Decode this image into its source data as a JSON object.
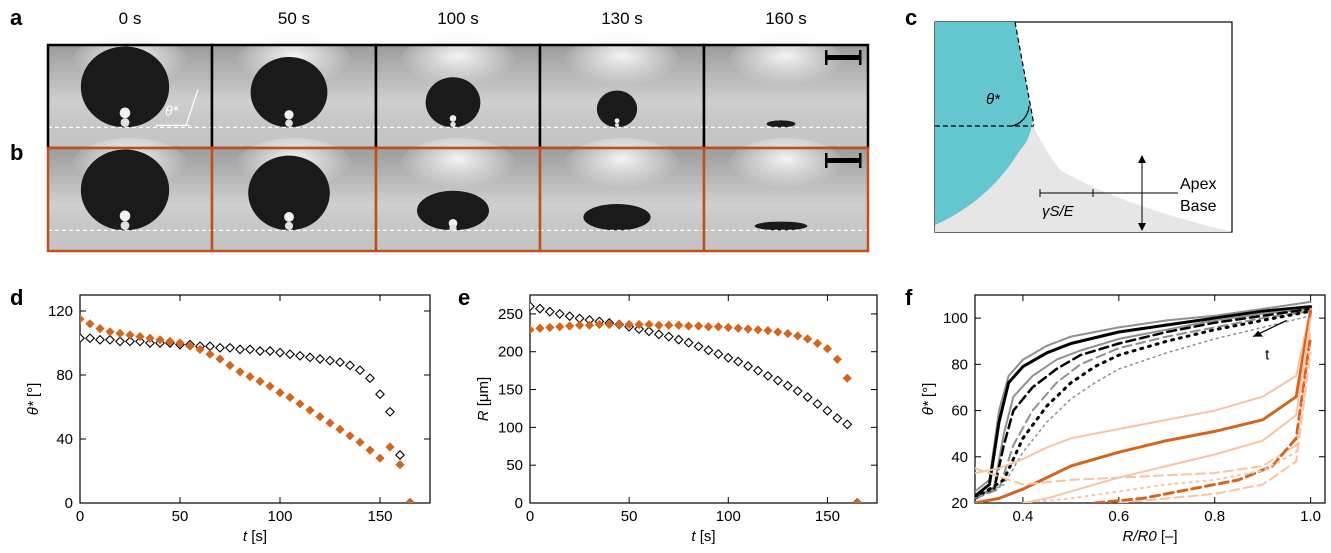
{
  "panels": {
    "a": "a",
    "b": "b",
    "c": "c",
    "d": "d",
    "e": "e",
    "f": "f"
  },
  "frames": {
    "times": [
      "0 s",
      "50 s",
      "100 s",
      "130 s",
      "160 s"
    ],
    "angle_label": "θ*",
    "row_a_border": "#000000",
    "row_b_border": "#c0501b",
    "drop_radius_a": [
      0.92,
      0.8,
      0.57,
      0.42,
      0.3
    ],
    "drop_height_a": [
      0.92,
      0.8,
      0.57,
      0.42,
      0.08
    ],
    "drop_radius_b": [
      0.92,
      0.85,
      0.75,
      0.7,
      0.55
    ],
    "drop_height_b": [
      0.92,
      0.85,
      0.45,
      0.3,
      0.1
    ]
  },
  "schematic": {
    "angle_label": "θ*",
    "length_label": "γS/E",
    "apex": "Apex",
    "base": "Base",
    "drop_color": "#64c6cf",
    "substrate_color": "#e6e6e6"
  },
  "colors": {
    "orange": "#d4651e",
    "black": "#000000"
  },
  "chart_data": [
    {
      "id": "d",
      "type": "scatter",
      "xlabel_var": "t",
      "xlabel_unit": "[s]",
      "ylabel_var": "θ*",
      "ylabel_unit": "[°]",
      "xlim": [
        0,
        175
      ],
      "ylim": [
        0,
        130
      ],
      "xticks": [
        0,
        50,
        100,
        150
      ],
      "yticks": [
        0,
        40,
        80,
        120
      ],
      "series": [
        {
          "marker": "open-diamond",
          "color": "#000000",
          "x": [
            0,
            5,
            10,
            15,
            20,
            25,
            30,
            35,
            40,
            45,
            50,
            55,
            60,
            65,
            70,
            75,
            80,
            85,
            90,
            95,
            100,
            105,
            110,
            115,
            120,
            125,
            130,
            135,
            140,
            145,
            150,
            155,
            160,
            165
          ],
          "y": [
            103,
            103,
            102,
            102,
            101,
            101,
            101,
            100,
            100,
            100,
            99,
            99,
            98,
            98,
            97,
            97,
            96,
            96,
            95,
            95,
            94,
            93,
            92,
            91,
            90,
            89,
            88,
            86,
            83,
            78,
            68,
            57,
            30,
            0
          ]
        },
        {
          "marker": "filled-diamond",
          "color": "#d4651e",
          "x": [
            0,
            5,
            10,
            15,
            20,
            25,
            30,
            35,
            40,
            45,
            50,
            55,
            60,
            65,
            70,
            75,
            80,
            85,
            90,
            95,
            100,
            105,
            110,
            115,
            120,
            125,
            130,
            135,
            140,
            145,
            150,
            155,
            160,
            165
          ],
          "y": [
            115,
            112,
            109,
            107,
            106,
            105,
            104,
            103,
            102,
            101,
            100,
            98,
            96,
            93,
            90,
            86,
            82,
            79,
            76,
            73,
            69,
            66,
            62,
            58,
            54,
            50,
            46,
            42,
            38,
            33,
            28,
            35,
            24,
            0
          ]
        }
      ]
    },
    {
      "id": "e",
      "type": "scatter",
      "xlabel_var": "t",
      "xlabel_unit": "[s]",
      "ylabel_var": "R",
      "ylabel_unit": "[μm]",
      "xlim": [
        0,
        175
      ],
      "ylim": [
        0,
        275
      ],
      "xticks": [
        0,
        50,
        100,
        150
      ],
      "yticks": [
        0,
        50,
        100,
        150,
        200,
        250
      ],
      "series": [
        {
          "marker": "open-diamond",
          "color": "#000000",
          "x": [
            0,
            5,
            10,
            15,
            20,
            25,
            30,
            35,
            40,
            45,
            50,
            55,
            60,
            65,
            70,
            75,
            80,
            85,
            90,
            95,
            100,
            105,
            110,
            115,
            120,
            125,
            130,
            135,
            140,
            145,
            150,
            155,
            160,
            165
          ],
          "y": [
            260,
            257,
            253,
            250,
            247,
            244,
            242,
            240,
            238,
            236,
            233,
            230,
            227,
            223,
            220,
            216,
            212,
            207,
            202,
            197,
            192,
            187,
            181,
            175,
            168,
            162,
            155,
            148,
            140,
            131,
            122,
            112,
            104,
            0
          ]
        },
        {
          "marker": "filled-diamond",
          "color": "#d4651e",
          "x": [
            0,
            5,
            10,
            15,
            20,
            25,
            30,
            35,
            40,
            45,
            50,
            55,
            60,
            65,
            70,
            75,
            80,
            85,
            90,
            95,
            100,
            105,
            110,
            115,
            120,
            125,
            130,
            135,
            140,
            145,
            150,
            155,
            160,
            165
          ],
          "y": [
            229,
            231,
            232,
            233,
            234,
            235,
            235,
            236,
            236,
            236,
            236,
            236,
            236,
            235,
            235,
            235,
            234,
            234,
            233,
            233,
            232,
            231,
            230,
            229,
            228,
            226,
            224,
            221,
            217,
            211,
            204,
            190,
            165,
            0
          ]
        }
      ]
    },
    {
      "id": "f",
      "type": "line",
      "xlabel_var": "R/R0",
      "xlabel_unit": "[–]",
      "ylabel_var": "θ*",
      "ylabel_unit": "[°]",
      "xlim": [
        0.3,
        1.03
      ],
      "ylim": [
        20,
        110
      ],
      "xticks": [
        0.4,
        0.6,
        0.8,
        1.0
      ],
      "yticks": [
        20,
        40,
        60,
        80,
        100
      ],
      "annotation": "t",
      "series": [
        {
          "color": "#909090",
          "width": 2,
          "dash": "",
          "x": [
            0.3,
            0.33,
            0.35,
            0.37,
            0.4,
            0.45,
            0.5,
            0.6,
            0.7,
            0.8,
            0.9,
            1.0
          ],
          "y": [
            25,
            30,
            60,
            75,
            82,
            88,
            92,
            96,
            99,
            101,
            104,
            107
          ]
        },
        {
          "color": "#000000",
          "width": 3,
          "dash": "",
          "x": [
            0.3,
            0.33,
            0.35,
            0.37,
            0.4,
            0.45,
            0.5,
            0.6,
            0.7,
            0.8,
            0.9,
            1.0
          ],
          "y": [
            23,
            28,
            55,
            72,
            79,
            85,
            89,
            94,
            97,
            100,
            103,
            105
          ]
        },
        {
          "color": "#909090",
          "width": 2,
          "dash": "",
          "x": [
            0.3,
            0.34,
            0.36,
            0.38,
            0.42,
            0.47,
            0.52,
            0.6,
            0.7,
            0.8,
            0.9,
            1.0
          ],
          "y": [
            22,
            27,
            50,
            66,
            75,
            82,
            86,
            91,
            95,
            99,
            102,
            104
          ]
        },
        {
          "color": "#000000",
          "width": 2.5,
          "dash": "9,5",
          "x": [
            0.3,
            0.34,
            0.36,
            0.38,
            0.42,
            0.47,
            0.52,
            0.6,
            0.7,
            0.8,
            0.9,
            1.0
          ],
          "y": [
            22,
            26,
            45,
            60,
            70,
            78,
            84,
            89,
            94,
            98,
            101,
            104
          ]
        },
        {
          "color": "#909090",
          "width": 2,
          "dash": "9,5",
          "x": [
            0.3,
            0.35,
            0.38,
            0.42,
            0.47,
            0.52,
            0.6,
            0.7,
            0.8,
            0.9,
            1.0
          ],
          "y": [
            22,
            26,
            45,
            60,
            72,
            80,
            87,
            92,
            96,
            100,
            103
          ]
        },
        {
          "color": "#000000",
          "width": 3,
          "dash": "2,6",
          "x": [
            0.3,
            0.36,
            0.4,
            0.45,
            0.5,
            0.55,
            0.6,
            0.7,
            0.8,
            0.9,
            1.0
          ],
          "y": [
            22,
            30,
            48,
            62,
            72,
            79,
            84,
            90,
            95,
            99,
            103
          ]
        },
        {
          "color": "#909090",
          "width": 1.5,
          "dash": "2,4",
          "x": [
            0.3,
            0.36,
            0.4,
            0.45,
            0.5,
            0.55,
            0.6,
            0.7,
            0.8,
            0.9,
            1.0
          ],
          "y": [
            22,
            28,
            42,
            55,
            65,
            72,
            78,
            85,
            91,
            96,
            101
          ]
        },
        {
          "color": "#f6c3a5",
          "width": 2,
          "dash": "",
          "x": [
            0.3,
            0.35,
            0.4,
            0.45,
            0.5,
            0.6,
            0.7,
            0.8,
            0.9,
            0.97,
            1.0
          ],
          "y": [
            33,
            35,
            39,
            44,
            48,
            52,
            56,
            60,
            66,
            75,
            104
          ]
        },
        {
          "color": "#d4651e",
          "width": 3,
          "dash": "",
          "x": [
            0.3,
            0.35,
            0.4,
            0.45,
            0.5,
            0.6,
            0.7,
            0.8,
            0.9,
            0.97,
            1.0
          ],
          "y": [
            20,
            22,
            26,
            31,
            36,
            42,
            47,
            51,
            56,
            66,
            103
          ]
        },
        {
          "color": "#f6c3a5",
          "width": 2,
          "dash": "",
          "x": [
            0.4,
            0.45,
            0.5,
            0.6,
            0.7,
            0.8,
            0.9,
            0.97,
            1.0
          ],
          "y": [
            20,
            22,
            25,
            31,
            36,
            41,
            47,
            58,
            100
          ]
        },
        {
          "color": "#f6c3a5",
          "width": 2,
          "dash": "9,5",
          "x": [
            0.3,
            0.4,
            0.5,
            0.6,
            0.7,
            0.8,
            0.9,
            0.97,
            1.0
          ],
          "y": [
            35,
            28,
            30,
            31,
            32,
            33,
            36,
            45,
            95
          ]
        },
        {
          "color": "#d4651e",
          "width": 3,
          "dash": "9,5",
          "x": [
            0.55,
            0.65,
            0.75,
            0.85,
            0.92,
            0.97,
            1.0
          ],
          "y": [
            20,
            22,
            26,
            30,
            36,
            48,
            92
          ]
        },
        {
          "color": "#f6c3a5",
          "width": 2,
          "dash": "2,5",
          "x": [
            0.4,
            0.5,
            0.6,
            0.7,
            0.8,
            0.9,
            0.97,
            1.0
          ],
          "y": [
            20,
            22,
            25,
            28,
            30,
            34,
            42,
            88
          ]
        },
        {
          "color": "#f6c3a5",
          "width": 2,
          "dash": "9,5",
          "x": [
            0.6,
            0.7,
            0.8,
            0.9,
            0.97,
            1.0
          ],
          "y": [
            20,
            22,
            24,
            28,
            38,
            85
          ]
        }
      ]
    }
  ]
}
